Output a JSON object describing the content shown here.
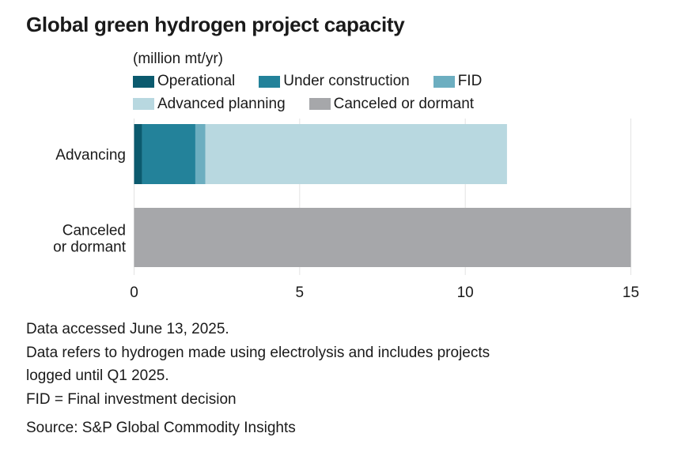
{
  "chart_data": {
    "type": "bar",
    "orientation": "horizontal",
    "stacked": true,
    "title": "Global green hydrogen project capacity",
    "unit_label": "(million mt/yr)",
    "categories": [
      "Advancing",
      "Canceled or dormant"
    ],
    "category_lines": [
      [
        "Advancing"
      ],
      [
        "Canceled",
        "or dormant"
      ]
    ],
    "series": [
      {
        "name": "Operational",
        "color": "#0b5a6e",
        "values": [
          0.24,
          0
        ]
      },
      {
        "name": "Under construction",
        "color": "#23829a",
        "values": [
          1.61,
          0
        ]
      },
      {
        "name": "FID",
        "color": "#6caec0",
        "values": [
          0.3,
          0
        ]
      },
      {
        "name": "Advanced planning",
        "color": "#b8d8e0",
        "values": [
          9.11,
          0
        ]
      },
      {
        "name": "Canceled or dormant",
        "color": "#a6a7aa",
        "values": [
          0,
          15.0
        ]
      }
    ],
    "xlim": [
      0,
      15
    ],
    "xticks": [
      0,
      5,
      10,
      15
    ],
    "xtick_labels": [
      "0",
      "5",
      "10",
      "15"
    ],
    "grid": true,
    "legend_position": "top"
  },
  "notes": [
    "Data accessed June 13, 2025.",
    "Data refers to hydrogen made using electrolysis and includes projects",
    "logged until Q1 2025.",
    "FID = Final investment decision"
  ],
  "source": "Source: S&P Global Commodity Insights"
}
